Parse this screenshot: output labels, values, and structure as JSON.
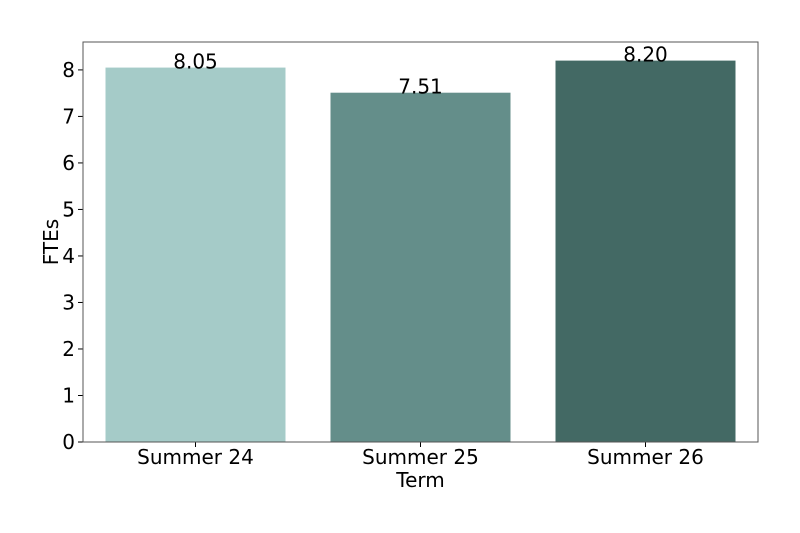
{
  "chart_data": {
    "type": "bar",
    "title": "",
    "xlabel": "Term",
    "ylabel": "FTEs",
    "categories": [
      "Summer 24",
      "Summer 25",
      "Summer 26"
    ],
    "values": [
      8.05,
      7.51,
      8.2
    ],
    "data_labels": [
      "8.05",
      "7.51",
      "8.20"
    ],
    "colors": [
      "#a5cbc8",
      "#648e8a",
      "#436964"
    ],
    "ylim": [
      0,
      8.6
    ],
    "yticks": [
      0,
      1,
      2,
      3,
      4,
      5,
      6,
      7,
      8
    ],
    "ytick_labels": [
      "0",
      "1",
      "2",
      "3",
      "4",
      "5",
      "6",
      "7",
      "8"
    ],
    "grid": false,
    "legend": "none"
  }
}
